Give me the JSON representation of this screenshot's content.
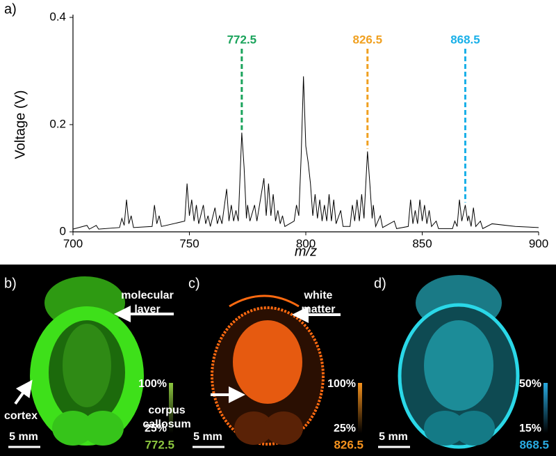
{
  "chart_data": {
    "type": "line",
    "panel_label": "a)",
    "xlabel": "m/z",
    "ylabel": "Voltage (V)",
    "color": "#000000",
    "x": [
      700,
      706,
      707,
      710,
      711,
      720,
      721,
      722,
      723,
      724,
      725,
      726,
      734,
      735,
      736,
      737,
      738,
      748,
      749,
      750,
      751,
      752,
      753,
      754,
      756,
      757,
      758,
      759,
      761,
      762,
      763,
      764,
      766,
      767,
      768,
      769,
      770,
      771,
      772.5,
      773.5,
      774.5,
      775,
      776,
      778,
      779,
      782,
      783,
      784,
      785,
      786,
      787,
      788,
      789,
      790,
      791,
      795,
      796,
      797,
      798,
      799,
      800,
      801,
      802,
      803,
      804,
      805,
      806,
      807,
      808,
      809,
      810,
      811,
      812,
      813,
      815,
      816,
      819,
      820,
      821,
      822,
      823,
      824,
      825,
      826.5,
      827.5,
      828.5,
      829,
      830,
      832,
      833,
      838,
      839,
      844,
      845,
      846,
      847,
      848,
      849,
      850,
      851,
      852,
      853,
      854,
      856,
      857,
      863,
      864,
      865,
      866,
      867,
      868.5,
      869.5,
      870,
      871,
      872,
      873,
      875,
      876,
      880,
      890,
      900
    ],
    "values": [
      0.005,
      0.012,
      0.005,
      0.012,
      0.005,
      0.008,
      0.025,
      0.012,
      0.06,
      0.015,
      0.03,
      0.008,
      0.01,
      0.05,
      0.015,
      0.03,
      0.01,
      0.02,
      0.09,
      0.03,
      0.06,
      0.02,
      0.05,
      0.015,
      0.05,
      0.015,
      0.03,
      0.01,
      0.045,
      0.015,
      0.03,
      0.015,
      0.08,
      0.02,
      0.05,
      0.02,
      0.04,
      0.02,
      0.185,
      0.12,
      0.025,
      0.05,
      0.02,
      0.05,
      0.02,
      0.1,
      0.03,
      0.09,
      0.03,
      0.07,
      0.02,
      0.04,
      0.015,
      0.03,
      0.01,
      0.02,
      0.05,
      0.03,
      0.14,
      0.29,
      0.16,
      0.13,
      0.09,
      0.03,
      0.07,
      0.025,
      0.06,
      0.02,
      0.05,
      0.02,
      0.07,
      0.02,
      0.06,
      0.015,
      0.04,
      0.01,
      0.01,
      0.05,
      0.02,
      0.06,
      0.02,
      0.07,
      0.025,
      0.15,
      0.09,
      0.025,
      0.05,
      0.01,
      0.03,
      0.008,
      0.02,
      0.006,
      0.01,
      0.06,
      0.015,
      0.04,
      0.015,
      0.06,
      0.02,
      0.05,
      0.015,
      0.04,
      0.01,
      0.02,
      0.006,
      0.006,
      0.02,
      0.01,
      0.06,
      0.02,
      0.05,
      0.02,
      0.03,
      0.01,
      0.045,
      0.01,
      0.02,
      0.006,
      0.015,
      0.01,
      0.008
    ],
    "xlim": [
      700,
      900
    ],
    "xticks": [
      700,
      750,
      800,
      850,
      900
    ],
    "ylim": [
      0,
      0.4
    ],
    "yticks": [
      0,
      0.2,
      0.4
    ],
    "annotations": [
      {
        "text": "772.5",
        "x": 772.5,
        "y": 0.19,
        "color": "#1aa35b"
      },
      {
        "text": "826.5",
        "x": 826.5,
        "y": 0.155,
        "color": "#f0a020"
      },
      {
        "text": "868.5",
        "x": 868.5,
        "y": 0.055,
        "color": "#1ab0e8"
      }
    ]
  },
  "panels": [
    {
      "label": "b)",
      "color": "#3ee01a",
      "bar_top": "100%",
      "bar_bottom": "25%",
      "mz": "772.5",
      "mz_color": "#8cc63f",
      "scale": "5 mm",
      "notes": [
        [
          "molecular",
          "layer"
        ],
        [
          "cortex"
        ]
      ]
    },
    {
      "label": "c)",
      "color": "#ff6a10",
      "bar_top": "100%",
      "bar_bottom": "25%",
      "mz": "826.5",
      "mz_color": "#f7931e",
      "scale": "5 mm",
      "notes": [
        [
          "white",
          "matter"
        ],
        [
          "corpus",
          "callosum"
        ]
      ]
    },
    {
      "label": "d)",
      "color": "#2ad8e8",
      "bar_top": "50%",
      "bar_bottom": "15%",
      "mz": "868.5",
      "mz_color": "#29abe2",
      "scale": "5 mm",
      "notes": []
    }
  ]
}
